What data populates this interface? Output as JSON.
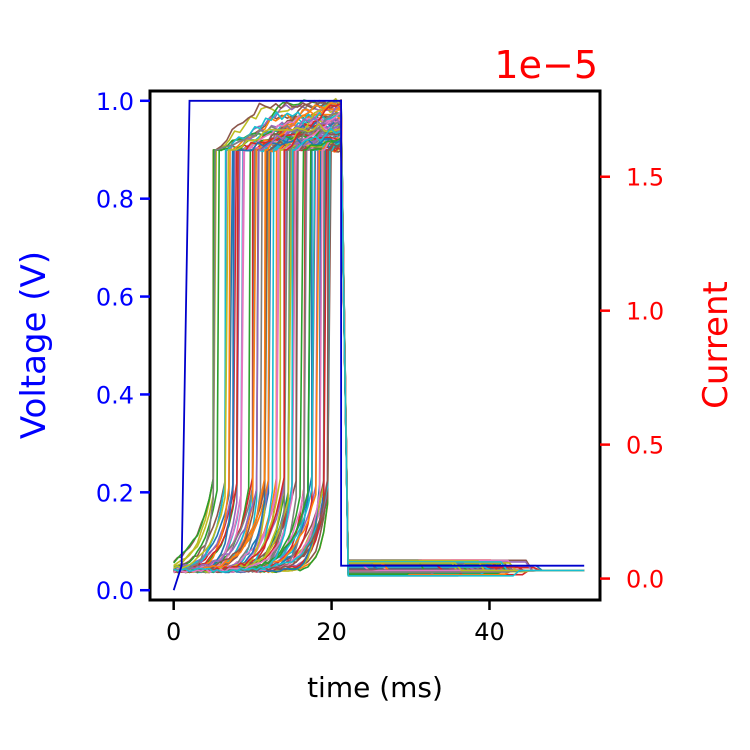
{
  "chart_data": {
    "type": "line",
    "xlabel": "time (ms)",
    "ylabel_left": "Voltage (V)",
    "ylabel_right": "Current",
    "right_axis_offset_text": "1e−5",
    "xlim": [
      -3.0,
      54.0
    ],
    "ylim_left": [
      -0.02,
      1.02
    ],
    "ylim_right": [
      -0.08,
      1.82
    ],
    "right_axis_multiplier": 1e-05,
    "x_ticks": [
      0,
      20,
      40
    ],
    "x_tick_labels": [
      "0",
      "20",
      "40"
    ],
    "y_left_ticks": [
      0.0,
      0.2,
      0.4,
      0.6,
      0.8,
      1.0
    ],
    "y_left_tick_labels": [
      "0.0",
      "0.2",
      "0.4",
      "0.6",
      "0.8",
      "1.0"
    ],
    "y_right_ticks": [
      0.0,
      0.5,
      1.0,
      1.5
    ],
    "y_right_tick_labels": [
      "0.0",
      "0.5",
      "1.0",
      "1.5"
    ],
    "grid": false,
    "legend": "none",
    "colors": {
      "left_axis": "#0000ff",
      "right_axis": "#ff0000",
      "voltage_line": "#0000cc",
      "palette": [
        "#1f77b4",
        "#ff7f0e",
        "#2ca02c",
        "#d62728",
        "#9467bd",
        "#8c564b",
        "#e377c2",
        "#7f7f7f",
        "#bcbd22",
        "#17becf"
      ]
    },
    "voltage_series": {
      "axis": "left",
      "x": [
        0,
        1,
        2,
        21.2,
        21.2,
        52
      ],
      "y": [
        0.0,
        0.05,
        1.0,
        1.0,
        0.05,
        0.05
      ]
    },
    "current_traces": {
      "axis": "right",
      "count": 90,
      "pulse_start_ms": 0.0,
      "pulse_end_ms": 21.5,
      "end_ms": 52.0,
      "baseline_current": 0.03,
      "compliance_current": 1.6,
      "peak_current_range": [
        1.62,
        1.78
      ],
      "switching_time_range_ms": [
        5.0,
        20.0
      ],
      "post_pulse_level_range": [
        0.01,
        0.07
      ],
      "post_pulse_drop_time_range_ms": [
        22.0,
        46.0
      ]
    }
  }
}
